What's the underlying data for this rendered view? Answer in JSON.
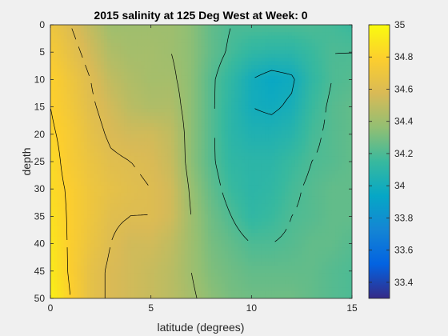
{
  "chart_data": {
    "type": "heatmap",
    "title": "2015 salinity at 125 Deg West at Week: 0",
    "xlabel": "latitude (degrees)",
    "ylabel": "depth",
    "xlim": [
      0,
      15
    ],
    "ylim": [
      0,
      50
    ],
    "y_reversed": true,
    "x_ticks": [
      "0",
      "5",
      "10",
      "15"
    ],
    "y_ticks": [
      "0",
      "5",
      "10",
      "15",
      "20",
      "25",
      "30",
      "35",
      "40",
      "45",
      "50"
    ],
    "colorbar": {
      "range": [
        33.3,
        35
      ],
      "ticks": [
        "33.4",
        "33.6",
        "33.8",
        "34",
        "34.2",
        "34.4",
        "34.6",
        "34.8",
        "35"
      ],
      "colormap": "parula"
    },
    "contour_levels": [
      34,
      34.2,
      34.4,
      34.6,
      34.8
    ],
    "x": [
      0,
      1,
      2,
      3,
      4,
      5,
      6,
      7,
      8,
      9,
      10,
      11,
      12,
      13,
      14,
      15
    ],
    "y": [
      0,
      5,
      10,
      15,
      20,
      25,
      30,
      35,
      40,
      45,
      50
    ],
    "values": [
      [
        34.7,
        34.6,
        34.5,
        34.4,
        34.4,
        34.4,
        34.4,
        34.35,
        34.25,
        34.2,
        34.2,
        34.2,
        34.2,
        34.2,
        34.18,
        34.15
      ],
      [
        34.75,
        34.65,
        34.55,
        34.45,
        34.42,
        34.42,
        34.4,
        34.35,
        34.25,
        34.18,
        34.12,
        34.1,
        34.1,
        34.15,
        34.2,
        34.2
      ],
      [
        34.8,
        34.7,
        34.6,
        34.5,
        34.45,
        34.42,
        34.42,
        34.35,
        34.22,
        34.12,
        34.0,
        33.95,
        33.98,
        34.12,
        34.2,
        34.22
      ],
      [
        34.8,
        34.72,
        34.62,
        34.55,
        34.48,
        34.45,
        34.45,
        34.35,
        34.22,
        34.1,
        34.0,
        33.98,
        34.02,
        34.15,
        34.22,
        34.25
      ],
      [
        34.82,
        34.75,
        34.65,
        34.58,
        34.55,
        34.55,
        34.5,
        34.35,
        34.22,
        34.1,
        34.05,
        34.05,
        34.08,
        34.18,
        34.22,
        34.25
      ],
      [
        34.85,
        34.75,
        34.68,
        34.62,
        34.6,
        34.58,
        34.52,
        34.35,
        34.22,
        34.12,
        34.1,
        34.1,
        34.15,
        34.2,
        34.22,
        34.25
      ],
      [
        34.85,
        34.78,
        34.7,
        34.65,
        34.62,
        34.6,
        34.55,
        34.38,
        34.25,
        34.15,
        34.1,
        34.12,
        34.18,
        34.22,
        34.25,
        34.25
      ],
      [
        34.88,
        34.78,
        34.7,
        34.62,
        34.6,
        34.6,
        34.55,
        34.4,
        34.28,
        34.2,
        34.12,
        34.15,
        34.2,
        34.22,
        34.25,
        34.25
      ],
      [
        34.9,
        34.78,
        34.68,
        34.6,
        34.55,
        34.55,
        34.5,
        34.4,
        34.3,
        34.25,
        34.2,
        34.2,
        34.22,
        34.25,
        34.25,
        34.22
      ],
      [
        34.92,
        34.78,
        34.65,
        34.58,
        34.55,
        34.52,
        34.48,
        34.4,
        34.32,
        34.28,
        34.25,
        34.25,
        34.25,
        34.25,
        34.22,
        34.2
      ],
      [
        34.95,
        34.8,
        34.65,
        34.58,
        34.55,
        34.52,
        34.48,
        34.42,
        34.35,
        34.3,
        34.28,
        34.28,
        34.28,
        34.25,
        34.22,
        34.2
      ]
    ]
  }
}
